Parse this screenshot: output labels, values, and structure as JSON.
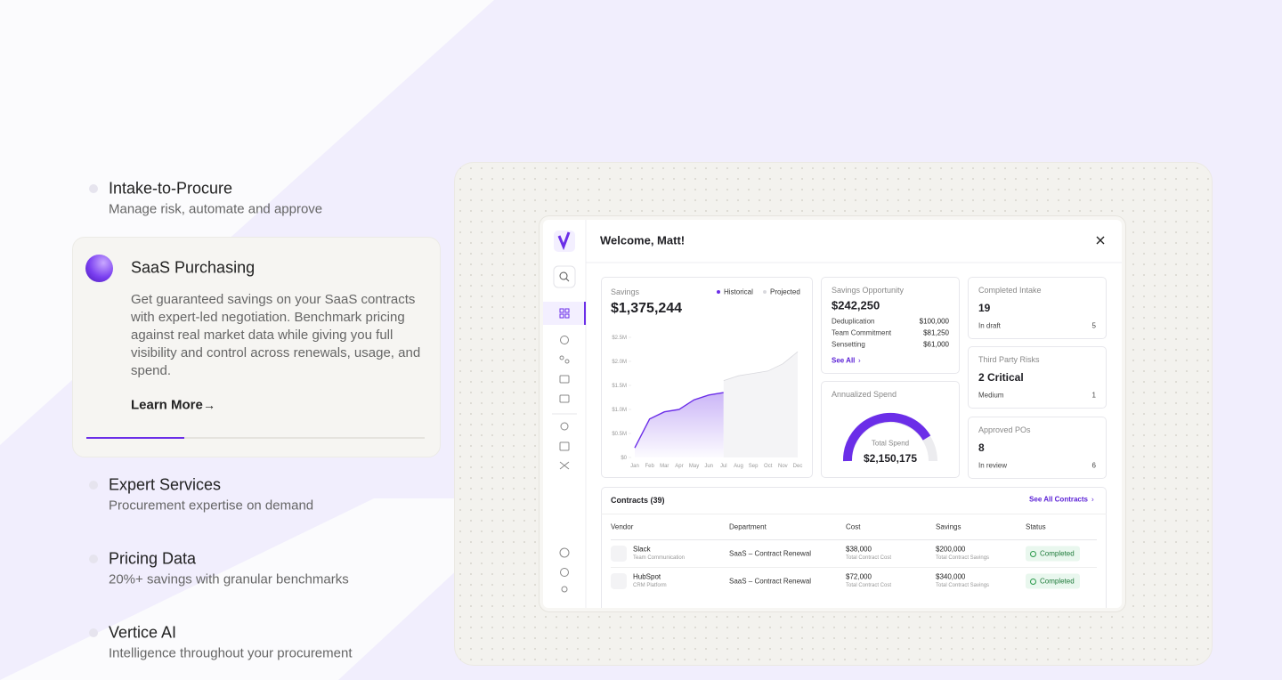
{
  "features": [
    {
      "title": "Intake-to-Procure",
      "subtitle": "Manage risk, automate and approve"
    },
    {
      "title": "SaaS Purchasing",
      "description": "Get guaranteed savings on your SaaS contracts with expert-led negotiation. Benchmark pricing against real market data while giving you full visibility and control across renewals, usage, and spend.",
      "link": "Learn More"
    },
    {
      "title": "Expert Services",
      "subtitle": "Procurement expertise on demand"
    },
    {
      "title": "Pricing Data",
      "subtitle": "20%+ savings with granular benchmarks"
    },
    {
      "title": "Vertice AI",
      "subtitle": "Intelligence throughout your procurement"
    }
  ],
  "dashboard": {
    "welcome": "Welcome, Matt!",
    "savings": {
      "label": "Savings",
      "total": "$1,375,244",
      "chart": {
        "type": "area",
        "categories": [
          "Jan",
          "Feb",
          "Mar",
          "Apr",
          "May",
          "Jun",
          "Jul",
          "Aug",
          "Sep",
          "Oct",
          "Nov",
          "Dec"
        ],
        "series": [
          {
            "name": "Historical",
            "color": "#6b2ee8",
            "values": [
              200000,
              800000,
              950000,
              1000000,
              1200000,
              1300000,
              1350000,
              null,
              null,
              null,
              null,
              null
            ]
          },
          {
            "name": "Projected",
            "color": "#d9d9de",
            "values": [
              null,
              null,
              null,
              null,
              null,
              null,
              1600000,
              1700000,
              1750000,
              1800000,
              1950000,
              2200000
            ]
          }
        ],
        "ylim": [
          0,
          2500000
        ],
        "yticks": [
          {
            "value": 0,
            "label": "$0"
          },
          {
            "value": 500000,
            "label": "$0.5M"
          },
          {
            "value": 1000000,
            "label": "$1.0M"
          },
          {
            "value": 1500000,
            "label": "$1.5M"
          },
          {
            "value": 2000000,
            "label": "$2.0M"
          },
          {
            "value": 2500000,
            "label": "$2.5M"
          }
        ]
      }
    },
    "opportunity": {
      "label": "Savings Opportunity",
      "total": "$242,250",
      "items": [
        {
          "name": "Deduplication",
          "value": "$100,000"
        },
        {
          "name": "Team Commitment",
          "value": "$81,250"
        },
        {
          "name": "Sensetting",
          "value": "$61,000"
        }
      ],
      "link": "See All"
    },
    "annualized": {
      "label": "Annualized Spend",
      "caption": "Total Spend",
      "total": "$2,150,175"
    },
    "cards": [
      {
        "label": "Completed Intake",
        "value": "19",
        "sub": "In draft",
        "count": 5
      },
      {
        "label": "Third Party Risks",
        "value": "2 Critical",
        "sub": "Medium",
        "count": 1
      },
      {
        "label": "Approved POs",
        "value": "8",
        "sub": "In review",
        "count": 6
      }
    ],
    "contracts": {
      "title": "Contracts (39)",
      "link": "See All Contracts",
      "columns": [
        "Vendor",
        "Department",
        "Cost",
        "Savings",
        "Status"
      ],
      "rows": [
        {
          "vendor": "Slack",
          "vendor_sub": "Team Communication",
          "department": "SaaS – Contract Renewal",
          "cost": "$38,000",
          "cost_sub": "Total Contract Cost",
          "savings": "$200,000",
          "savings_sub": "Total Contract Savings",
          "status": "Completed"
        },
        {
          "vendor": "HubSpot",
          "vendor_sub": "CRM Platform",
          "department": "SaaS – Contract Renewal",
          "cost": "$72,000",
          "cost_sub": "Total Contract Cost",
          "savings": "$340,000",
          "savings_sub": "Total Contract Savings",
          "status": "Completed"
        }
      ]
    }
  }
}
